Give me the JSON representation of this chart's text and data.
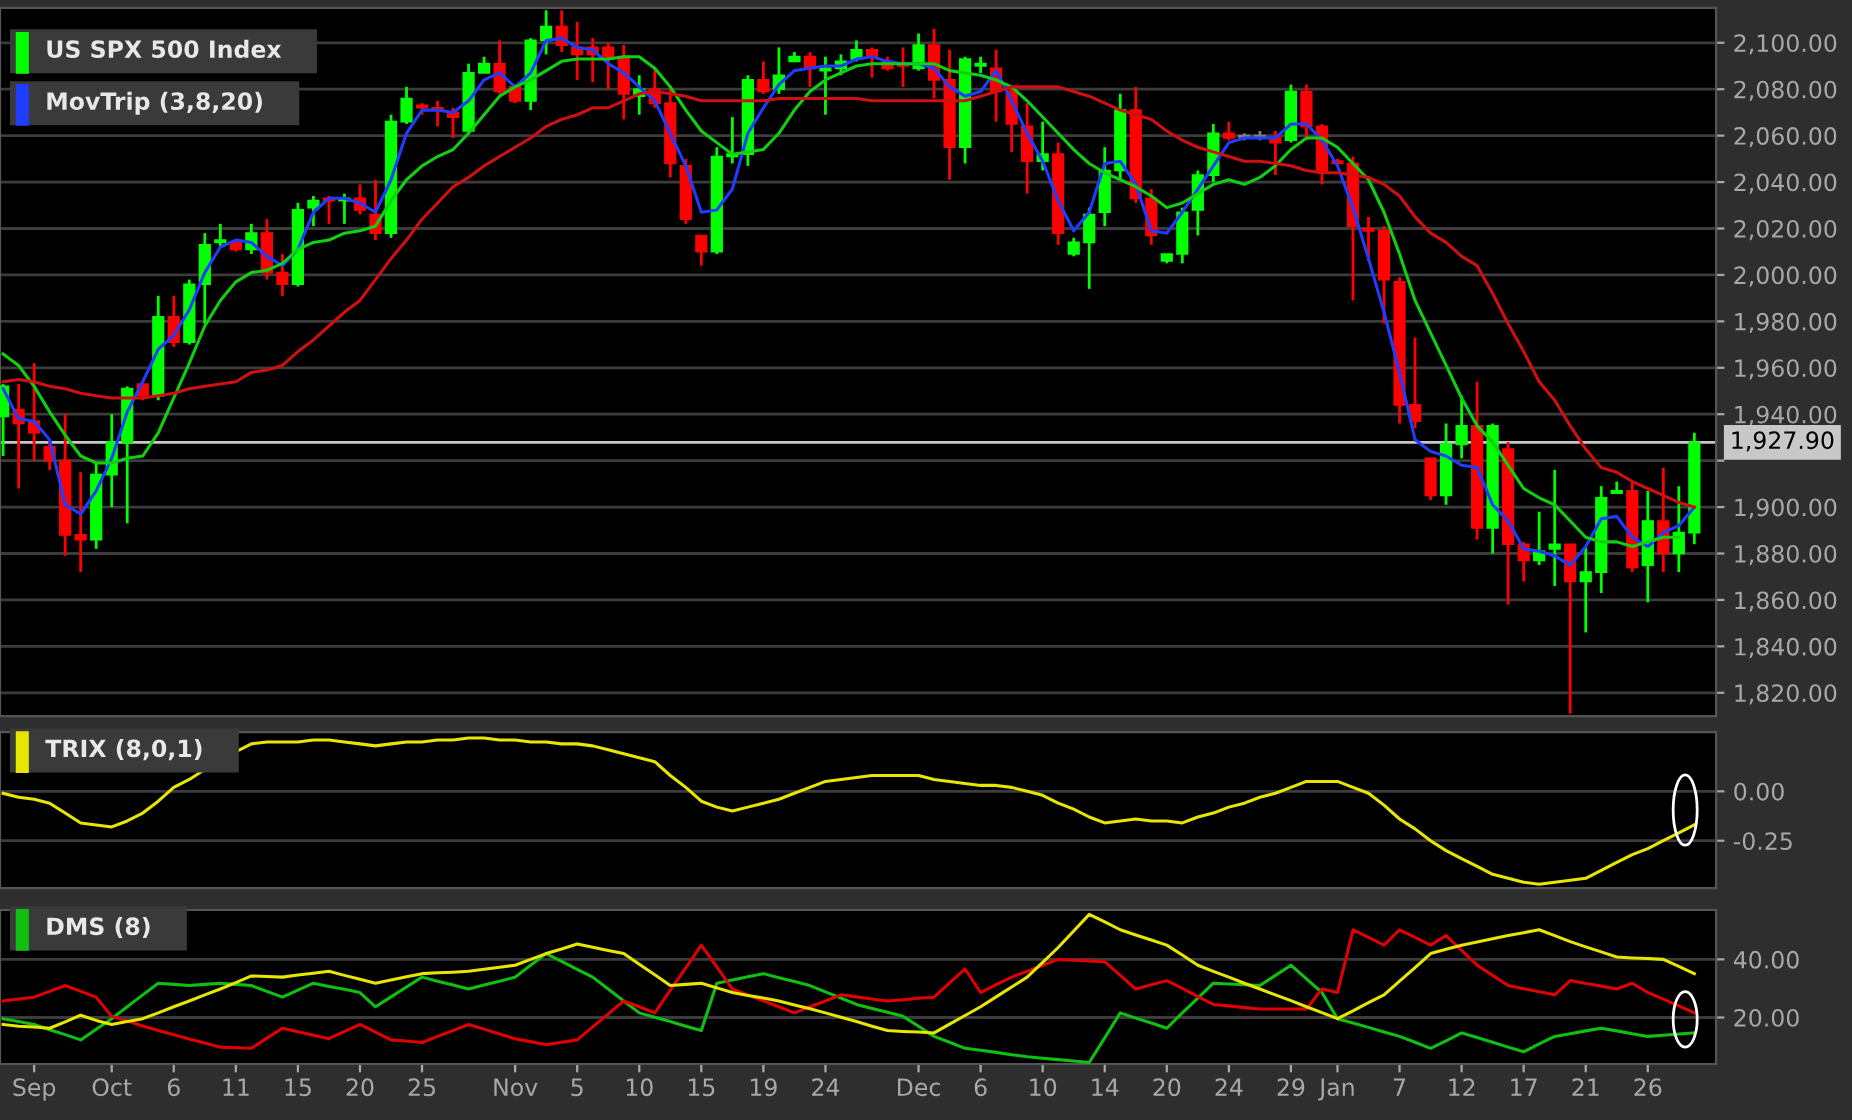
{
  "chart_data": [
    {
      "type": "candlestick",
      "legend": "top left",
      "grid": "y",
      "tick_labels": "y",
      "categories": [
        null,
        null,
        null,
        null,
        null,
        null,
        null,
        null,
        null,
        null,
        null,
        null,
        null,
        null,
        null,
        null,
        null,
        null,
        null,
        null,
        null,
        null,
        null,
        null,
        null,
        null,
        null,
        null,
        null,
        null,
        null,
        null,
        null,
        null,
        null,
        null,
        null,
        null,
        null,
        null,
        null,
        null,
        null,
        null,
        null,
        null,
        null,
        null,
        null,
        null,
        null,
        null,
        null,
        null,
        null,
        null,
        null,
        null,
        null,
        null,
        null,
        null,
        null,
        null,
        null,
        null,
        null,
        null,
        null,
        null,
        null,
        null,
        null,
        null,
        null,
        null,
        null,
        null,
        null,
        null,
        null,
        null,
        null,
        null,
        null,
        null,
        null,
        null,
        null,
        null,
        null,
        null,
        null,
        null,
        null,
        null,
        null,
        null,
        null,
        null,
        null,
        null,
        null,
        null,
        null,
        null,
        null,
        null,
        null,
        null
      ],
      "ylim": [
        1810,
        2115
      ],
      "yticks": [
        {
          "value": 1820,
          "label": "1,820.00"
        },
        {
          "value": 1840,
          "label": "1,840.00"
        },
        {
          "value": 1860,
          "label": "1,860.00"
        },
        {
          "value": 1880,
          "label": "1,880.00"
        },
        {
          "value": 1900,
          "label": "1,900.00"
        },
        {
          "value": 1920,
          "label": null
        },
        {
          "value": 1940,
          "label": "1,940.00"
        },
        {
          "value": 1960,
          "label": "1,960.00"
        },
        {
          "value": 1980,
          "label": "1,980.00"
        },
        {
          "value": 2000,
          "label": "2,000.00"
        },
        {
          "value": 2020,
          "label": "2,020.00"
        },
        {
          "value": 2040,
          "label": "2,040.00"
        },
        {
          "value": 2060,
          "label": "2,060.00"
        },
        {
          "value": 2080,
          "label": "2,080.00"
        },
        {
          "value": 2100,
          "label": "2,100.00"
        }
      ],
      "ref_lines": [
        {
          "axis": "y",
          "value": 1927.9,
          "label": "1,927.90",
          "color": "#c8c8c8"
        }
      ],
      "series": [
        {
          "name": "US SPX 500 Index",
          "type": "candlestick",
          "color": "#00ff00",
          "ohlc": [
            [
              1939,
              1953,
              1922,
              1952
            ],
            [
              1942,
              1953,
              1908,
              1936
            ],
            [
              1937,
              1962,
              1920,
              1932
            ],
            [
              1926,
              1929,
              1916,
              1920
            ],
            [
              1920,
              1940,
              1879,
              1888
            ],
            [
              1888,
              1915,
              1872,
              1886
            ],
            [
              1886,
              1919,
              1882,
              1914
            ],
            [
              1914,
              1940,
              1900,
              1928
            ],
            [
              1928,
              1952,
              1893,
              1951
            ],
            [
              1953,
              1953,
              1946,
              1948
            ],
            [
              1948,
              1991,
              1946,
              1982
            ],
            [
              1982,
              1991,
              1969,
              1971
            ],
            [
              1971,
              1998,
              1970,
              1996
            ],
            [
              1996,
              2018,
              1979,
              2013
            ],
            [
              2014,
              2022,
              2012,
              2015
            ],
            [
              2014,
              2015,
              2010,
              2011
            ],
            [
              2011,
              2022,
              2009,
              2018
            ],
            [
              2018,
              2024,
              1998,
              2001
            ],
            [
              2001,
              2009,
              1991,
              1996
            ],
            [
              1996,
              2031,
              1995,
              2028
            ],
            [
              2029,
              2034,
              2021,
              2032
            ],
            [
              2033,
              2034,
              2022,
              2032
            ],
            [
              2032,
              2035,
              2022,
              2033
            ],
            [
              2033,
              2039,
              2026,
              2028
            ],
            [
              2026,
              2041,
              2015,
              2018
            ],
            [
              2018,
              2069,
              2016,
              2066
            ],
            [
              2066,
              2081,
              2065,
              2076
            ],
            [
              2073,
              2074,
              2069,
              2072
            ],
            [
              2072,
              2075,
              2064,
              2071
            ],
            [
              2070,
              2072,
              2059,
              2068
            ],
            [
              2062,
              2091,
              2061,
              2087
            ],
            [
              2087,
              2094,
              2087,
              2091
            ],
            [
              2091,
              2101,
              2078,
              2079
            ],
            [
              2081,
              2082,
              2074,
              2075
            ],
            [
              2075,
              2102,
              2071,
              2101
            ],
            [
              2101,
              2114,
              2095,
              2107
            ],
            [
              2107,
              2114,
              2096,
              2099
            ],
            [
              2098,
              2109,
              2084,
              2095
            ],
            [
              2098,
              2102,
              2083,
              2095
            ],
            [
              2098,
              2100,
              2080,
              2094
            ],
            [
              2094,
              2099,
              2067,
              2078
            ],
            [
              2077,
              2086,
              2069,
              2080
            ],
            [
              2080,
              2089,
              2072,
              2074
            ],
            [
              2074,
              2081,
              2042,
              2048
            ],
            [
              2047,
              2050,
              2022,
              2024
            ],
            [
              2017,
              2017,
              2004,
              2010
            ],
            [
              2010,
              2055,
              2009,
              2051
            ],
            [
              2051,
              2068,
              2048,
              2052
            ],
            [
              2052,
              2086,
              2047,
              2084
            ],
            [
              2084,
              2092,
              2078,
              2079
            ],
            [
              2080,
              2098,
              2078,
              2086
            ],
            [
              2092,
              2096,
              2092,
              2094
            ],
            [
              2094,
              2096,
              2081,
              2089
            ],
            [
              2088,
              2094,
              2069,
              2089
            ],
            [
              2089,
              2095,
              2086,
              2092
            ],
            [
              2093,
              2101,
              2092,
              2097
            ],
            [
              2097,
              2098,
              2085,
              2094
            ],
            [
              2092,
              2094,
              2088,
              2089
            ],
            [
              2091,
              2098,
              2081,
              2090
            ],
            [
              2089,
              2104,
              2088,
              2099
            ],
            [
              2099,
              2106,
              2076,
              2084
            ],
            [
              2084,
              2097,
              2041,
              2055
            ],
            [
              2055,
              2094,
              2048,
              2093
            ],
            [
              2090,
              2094,
              2087,
              2091
            ],
            [
              2089,
              2097,
              2066,
              2079
            ],
            [
              2079,
              2081,
              2053,
              2065
            ],
            [
              2064,
              2074,
              2035,
              2049
            ],
            [
              2049,
              2066,
              2045,
              2052
            ],
            [
              2052,
              2057,
              2013,
              2018
            ],
            [
              2009,
              2016,
              2008,
              2014
            ],
            [
              2014,
              2029,
              1994,
              2026
            ],
            [
              2027,
              2055,
              2021,
              2045
            ],
            [
              2045,
              2078,
              2041,
              2071
            ],
            [
              2071,
              2081,
              2031,
              2033
            ],
            [
              2033,
              2037,
              2013,
              2017
            ],
            [
              2006,
              2009,
              2005,
              2009
            ],
            [
              2009,
              2029,
              2005,
              2027
            ],
            [
              2028,
              2045,
              2017,
              2043
            ],
            [
              2043,
              2065,
              2040,
              2061
            ],
            [
              2061,
              2066,
              2058,
              2059
            ],
            [
              2060,
              2061,
              2058,
              2059
            ],
            [
              2059,
              2062,
              2058,
              2060
            ],
            [
              2059,
              2062,
              2043,
              2057
            ],
            [
              2058,
              2082,
              2057,
              2079
            ],
            [
              2079,
              2082,
              2058,
              2064
            ],
            [
              2064,
              2065,
              2039,
              2044
            ],
            [
              2049,
              2050,
              2047,
              2048
            ],
            [
              2048,
              2051,
              1989,
              2021
            ],
            [
              2020,
              2025,
              2006,
              2019
            ],
            [
              2019,
              2021,
              1979,
              1998
            ],
            [
              1997,
              1999,
              1936,
              1944
            ],
            [
              1944,
              1973,
              1934,
              1937
            ],
            [
              1921,
              1921,
              1903,
              1905
            ],
            [
              1905,
              1936,
              1901,
              1927
            ],
            [
              1927,
              1948,
              1921,
              1935
            ],
            [
              1935,
              1954,
              1886,
              1891
            ],
            [
              1891,
              1936,
              1880,
              1935
            ],
            [
              1925,
              1928,
              1858,
              1884
            ],
            [
              1884,
              1885,
              1868,
              1877
            ],
            [
              1877,
              1898,
              1875,
              1881
            ],
            [
              1882,
              1916,
              1866,
              1884
            ],
            [
              1884,
              1884,
              1811,
              1868
            ],
            [
              1868,
              1883,
              1846,
              1872
            ],
            [
              1872,
              1909,
              1863,
              1904
            ],
            [
              1906,
              1911,
              1906,
              1907
            ],
            [
              1907,
              1911,
              1872,
              1874
            ],
            [
              1875,
              1907,
              1859,
              1894
            ],
            [
              1894,
              1917,
              1872,
              1880
            ],
            [
              1880,
              1909,
              1872,
              1889
            ],
            [
              1889,
              1932,
              1884,
              1927.9
            ]
          ],
          "colors": [
            "#00ff00",
            "#ff0000",
            "#ff0000",
            "#ff0000",
            "#ff0000",
            "#ff0000",
            "#00ff00",
            "#00ff00",
            "#00ff00",
            "#ff0000",
            "#00ff00",
            "#ff0000",
            "#00ff00",
            "#00ff00",
            "#00ff00",
            "#ff0000",
            "#00ff00",
            "#ff0000",
            "#ff0000",
            "#00ff00",
            "#00ff00",
            "#ff0000",
            "#00ff00",
            "#ff0000",
            "#ff0000",
            "#00ff00",
            "#00ff00",
            "#ff0000",
            "#ff0000",
            "#ff0000",
            "#00ff00",
            "#00ff00",
            "#ff0000",
            "#ff0000",
            "#00ff00",
            "#00ff00",
            "#ff0000",
            "#ff0000",
            "#ff0000",
            "#ff0000",
            "#ff0000",
            "#00ff00",
            "#ff0000",
            "#ff0000",
            "#ff0000",
            "#ff0000",
            "#00ff00",
            "#00ff00",
            "#00ff00",
            "#ff0000",
            "#00ff00",
            "#00ff00",
            "#ff0000",
            "#00ff00",
            "#00ff00",
            "#00ff00",
            "#ff0000",
            "#ff0000",
            "#ff0000",
            "#00ff00",
            "#ff0000",
            "#ff0000",
            "#00ff00",
            "#00ff00",
            "#ff0000",
            "#ff0000",
            "#ff0000",
            "#00ff00",
            "#ff0000",
            "#00ff00",
            "#00ff00",
            "#00ff00",
            "#00ff00",
            "#ff0000",
            "#ff0000",
            "#00ff00",
            "#00ff00",
            "#00ff00",
            "#00ff00",
            "#ff0000",
            "#808080",
            "#808080",
            "#ff0000",
            "#00ff00",
            "#ff0000",
            "#ff0000",
            "#ff0000",
            "#ff0000",
            "#ff0000",
            "#ff0000",
            "#ff0000",
            "#ff0000",
            "#ff0000",
            "#00ff00",
            "#00ff00",
            "#ff0000",
            "#00ff00",
            "#ff0000",
            "#ff0000",
            "#00ff00",
            "#00ff00",
            "#ff0000",
            "#00ff00",
            "#00ff00",
            "#00ff00",
            "#ff0000",
            "#00ff00",
            "#ff0000",
            "#00ff00",
            "#00ff00"
          ]
        },
        {
          "name": "MovTrip (3,8,20)",
          "type": "line",
          "color": "#1f3dff",
          "values": [
            1951,
            1938,
            1937,
            1929,
            1901,
            1897,
            1907,
            1921,
            1941,
            1954,
            1968,
            1974,
            1985,
            2001,
            2012,
            2015,
            2014,
            2008,
            2004,
            2011,
            2027,
            2033,
            2033,
            2031,
            2027,
            2041,
            2061,
            2071,
            2071,
            2070,
            2075,
            2084,
            2087,
            2081,
            2087,
            2101,
            2102,
            2098,
            2097,
            2091,
            2087,
            2081,
            2075,
            2061,
            2047,
            2027,
            2028,
            2037,
            2061,
            2072,
            2082,
            2088,
            2089,
            2090,
            2090,
            2093,
            2094,
            2092,
            2091,
            2091,
            2089,
            2081,
            2077,
            2079,
            2088,
            2075,
            2061,
            2049,
            2032,
            2019,
            2027,
            2048,
            2049,
            2039,
            2019,
            2018,
            2027,
            2037,
            2047,
            2057,
            2059,
            2059,
            2059,
            2065,
            2065,
            2058,
            2047,
            2029,
            2007,
            1984,
            1958,
            1929,
            1924,
            1922,
            1918,
            1917,
            1901,
            1894,
            1882,
            1881,
            1879,
            1875,
            1883,
            1895,
            1896,
            1887,
            1883,
            1889,
            1892,
            1900
          ]
        },
        {
          "type": "line",
          "color": "#10d010",
          "values": [
            1966,
            1961,
            1952,
            1941,
            1931,
            1922,
            1919,
            1919,
            1921,
            1922,
            1932,
            1947,
            1962,
            1978,
            1989,
            1997,
            2001,
            2002,
            2005,
            2011,
            2014,
            2015,
            2018,
            2019,
            2021,
            2032,
            2041,
            2047,
            2051,
            2054,
            2061,
            2069,
            2077,
            2081,
            2084,
            2088,
            2092,
            2093,
            2093,
            2093,
            2094,
            2094,
            2089,
            2081,
            2071,
            2062,
            2057,
            2052,
            2053,
            2054,
            2061,
            2071,
            2079,
            2084,
            2087,
            2090,
            2091,
            2091,
            2091,
            2091,
            2091,
            2088,
            2087,
            2086,
            2084,
            2081,
            2075,
            2068,
            2061,
            2054,
            2048,
            2044,
            2041,
            2038,
            2034,
            2029,
            2031,
            2035,
            2039,
            2041,
            2039,
            2042,
            2047,
            2054,
            2059,
            2059,
            2055,
            2048,
            2041,
            2027,
            2009,
            1989,
            1975,
            1961,
            1947,
            1935,
            1928,
            1918,
            1908,
            1904,
            1901,
            1894,
            1887,
            1885,
            1885,
            1883,
            1885,
            1887,
            1887,
            null
          ]
        },
        {
          "type": "line",
          "color": "#d01010",
          "values": [
            1954,
            1955,
            1954,
            1952,
            1951,
            1949,
            1948,
            1947,
            1947,
            1947,
            1948,
            1949,
            1951,
            1952,
            1953,
            1954,
            1958,
            1959,
            1961,
            1967,
            1972,
            1978,
            1984,
            1989,
            1998,
            2007,
            2015,
            2024,
            2031,
            2038,
            2042,
            2047,
            2051,
            2055,
            2059,
            2064,
            2067,
            2069,
            2072,
            2072,
            2075,
            2078,
            2079,
            2078,
            2077,
            2075,
            2075,
            2075,
            2075,
            2075,
            2076,
            2076,
            2076,
            2076,
            2076,
            2076,
            2075,
            2075,
            2075,
            2075,
            2075,
            2075,
            2075,
            2077,
            2079,
            2081,
            2081,
            2081,
            2081,
            2079,
            2077,
            2074,
            2071,
            2069,
            2067,
            2062,
            2058,
            2055,
            2053,
            2051,
            2049,
            2049,
            2048,
            2047,
            2045,
            2044,
            2044,
            2043,
            2042,
            2039,
            2034,
            2025,
            2018,
            2014,
            2008,
            2004,
            1992,
            1979,
            1967,
            1954,
            1946,
            1935,
            1925,
            1917,
            1915,
            1911,
            1908,
            1905,
            1902,
            1900
          ]
        }
      ]
    },
    {
      "type": "line",
      "legend": "top left",
      "grid": "y",
      "tick_labels": "y",
      "categories": [
        null,
        null,
        null,
        null,
        null,
        null,
        null,
        null,
        null,
        null,
        null,
        null,
        null,
        null,
        null,
        null,
        null,
        null,
        null,
        null,
        null,
        null,
        null,
        null,
        null,
        null,
        null,
        null,
        null,
        null,
        null,
        null,
        null,
        null,
        null,
        null,
        null,
        null,
        null,
        null,
        null,
        null,
        null,
        null,
        null,
        null,
        null,
        null,
        null,
        null,
        null,
        null,
        null,
        null,
        null,
        null,
        null,
        null,
        null,
        null,
        null,
        null,
        null,
        null,
        null,
        null,
        null,
        null,
        null,
        null,
        null,
        null,
        null,
        null,
        null,
        null,
        null,
        null,
        null,
        null,
        null,
        null,
        null,
        null,
        null,
        null,
        null,
        null,
        null,
        null,
        null,
        null,
        null,
        null,
        null,
        null,
        null,
        null,
        null,
        null,
        null,
        null,
        null,
        null,
        null,
        null,
        null,
        null,
        null,
        null
      ],
      "ylim": [
        -0.49,
        0.3
      ],
      "yticks": [
        {
          "value": -0.25,
          "label": "-0.25"
        },
        {
          "value": 0,
          "label": "0.00"
        }
      ],
      "series": [
        {
          "name": "TRIX (8,0,1)",
          "color": "#e6e600",
          "values": [
            -0.01,
            -0.03,
            -0.04,
            -0.06,
            -0.11,
            -0.16,
            -0.17,
            -0.18,
            -0.15,
            -0.11,
            -0.05,
            0.02,
            0.06,
            0.11,
            null,
            0.2,
            0.24,
            0.25,
            0.25,
            0.25,
            0.26,
            0.26,
            0.25,
            0.24,
            0.23,
            0.24,
            0.25,
            0.25,
            0.26,
            0.26,
            0.27,
            0.27,
            0.26,
            0.26,
            0.25,
            0.25,
            0.24,
            0.24,
            0.23,
            0.21,
            0.19,
            0.17,
            0.15,
            0.08,
            0.02,
            -0.05,
            -0.08,
            -0.1,
            -0.08,
            -0.06,
            -0.04,
            -0.01,
            0.02,
            0.05,
            0.06,
            0.07,
            0.08,
            0.08,
            0.08,
            0.08,
            0.06,
            0.05,
            0.04,
            0.03,
            0.03,
            0.02,
            0.0,
            -0.02,
            -0.06,
            -0.09,
            -0.13,
            -0.16,
            -0.15,
            -0.14,
            -0.15,
            -0.15,
            -0.16,
            -0.13,
            -0.11,
            -0.08,
            -0.06,
            -0.03,
            -0.01,
            0.02,
            0.05,
            0.05,
            0.05,
            0.02,
            -0.01,
            -0.07,
            -0.14,
            -0.19,
            -0.25,
            -0.3,
            -0.34,
            -0.38,
            -0.42,
            -0.44,
            -0.46,
            -0.47,
            -0.46,
            -0.45,
            -0.44,
            -0.4,
            -0.36,
            -0.32,
            -0.29,
            -0.25,
            -0.21,
            -0.17
          ]
        }
      ]
    },
    {
      "type": "line",
      "legend": "top left",
      "grid": "y",
      "categories": [
        null,
        null,
        "Sep",
        null,
        null,
        null,
        null,
        "Oct",
        null,
        null,
        null,
        "6",
        null,
        null,
        null,
        "11",
        null,
        null,
        null,
        "15",
        null,
        null,
        null,
        "20",
        null,
        null,
        null,
        "25",
        null,
        null,
        null,
        null,
        null,
        "Nov",
        null,
        null,
        null,
        "5",
        null,
        null,
        null,
        "10",
        null,
        null,
        null,
        "15",
        null,
        null,
        null,
        "19",
        null,
        null,
        null,
        "24",
        null,
        null,
        null,
        null,
        null,
        "Dec",
        null,
        null,
        null,
        "6",
        null,
        null,
        null,
        "10",
        null,
        null,
        null,
        "14",
        null,
        null,
        null,
        "20",
        null,
        null,
        null,
        "24",
        null,
        null,
        null,
        "29",
        null,
        null,
        "Jan",
        null,
        null,
        null,
        "7",
        null,
        null,
        null,
        "12",
        null,
        null,
        null,
        "17",
        null,
        null,
        null,
        "21",
        null,
        null,
        null,
        "26",
        null,
        null,
        null
      ],
      "ylim": [
        4,
        57
      ],
      "yticks": [
        {
          "value": 20,
          "label": "20.00"
        },
        {
          "value": 40,
          "label": "40.00"
        }
      ],
      "series": [
        {
          "name": "DMS (8)",
          "color": "#10c010",
          "values": [
            19.6,
            18.6,
            17.6,
            15.8,
            14.1,
            12.3,
            16,
            19.6,
            23.7,
            27.8,
            31.8,
            31.4,
            31,
            31.4,
            31.8,
            31.4,
            31,
            29,
            27,
            29.4,
            31.8,
            30.7,
            29.7,
            28.6,
            23.7,
            27.1,
            30.5,
            33.9,
            32.5,
            31.2,
            29.8,
            31.2,
            32.5,
            33.9,
            38,
            42,
            39.3,
            36.6,
            33.9,
            29.8,
            25.7,
            21.6,
            20.1,
            18.6,
            17,
            15.5,
            31.8,
            32.9,
            34,
            35.1,
            33.7,
            32.4,
            31,
            28.8,
            26.7,
            24.5,
            23.1,
            21.8,
            20.4,
            17,
            13.5,
            11.5,
            9.4,
            8.7,
            8,
            7.2,
            6.5,
            6,
            5.5,
            5,
            4.5,
            13,
            21.6,
            19.8,
            18.1,
            16.3,
            21.6,
            26.7,
            31.8,
            31.5,
            31.3,
            31,
            34.5,
            38,
            33.3,
            28.6,
            19.6,
            18.1,
            16.6,
            15,
            13.5,
            11.5,
            9.4,
            12,
            14.7,
            13.1,
            11.5,
            9.8,
            8.2,
            10.9,
            13.5,
            14.4,
            15.4,
            16.3,
            15.4,
            14.4,
            13.5,
            13.9,
            14.3,
            14.7
          ]
        },
        {
          "color": "#e00000",
          "values": [
            25.7,
            26.4,
            27,
            29,
            31,
            29,
            27,
            20.4,
            18.8,
            17.1,
            15.5,
            14.1,
            12.6,
            11.2,
            9.8,
            9.6,
            9.4,
            12.9,
            16.3,
            15.1,
            13.9,
            12.7,
            15.2,
            17.6,
            15,
            12.3,
            11.9,
            11.4,
            13.5,
            15.5,
            17.6,
            16,
            14.3,
            12.7,
            11.7,
            10.6,
            11.5,
            12.3,
            16.8,
            21.2,
            25.7,
            23.7,
            21.6,
            29.4,
            37.1,
            44.9,
            37.4,
            29.8,
            27.8,
            25.7,
            23.7,
            21.6,
            23.7,
            25.7,
            27.8,
            27.1,
            26.4,
            25.7,
            26.1,
            26.6,
            27,
            31.9,
            36.7,
            28.6,
            31.3,
            33.9,
            35.9,
            38,
            40,
            39.7,
            39.5,
            39.2,
            34.5,
            29.8,
            31.3,
            32.7,
            30,
            27.2,
            24.5,
            24,
            23.4,
            22.9,
            22.9,
            22.9,
            22.9,
            29.8,
            28.6,
            50.2,
            47.6,
            44.9,
            50.2,
            47.6,
            44.9,
            48.2,
            43.1,
            38,
            34.5,
            31,
            29.9,
            28.9,
            27.8,
            32.7,
            31.7,
            30.8,
            29.8,
            31.8,
            28.6,
            26.3,
            24,
            21.6
          ]
        },
        {
          "color": "#e6e600",
          "values": [
            17.6,
            17,
            16.7,
            16.3,
            18.5,
            20.8,
            19,
            17.6,
            18.6,
            19.6,
            21.6,
            23.7,
            25.7,
            27.8,
            29.8,
            32,
            34.3,
            34.1,
            33.9,
            34.6,
            35.2,
            35.9,
            34.5,
            33.2,
            31.8,
            32.9,
            34,
            35.1,
            35.4,
            35.6,
            35.9,
            36.6,
            37.3,
            38,
            40,
            42,
            43.6,
            45.3,
            44.2,
            43.1,
            42,
            38.3,
            34.7,
            31,
            31.4,
            31.8,
            30.2,
            28.6,
            27.6,
            26.7,
            25.7,
            24.3,
            23,
            21.6,
            20.1,
            18.6,
            17,
            15.5,
            15.2,
            15,
            14.7,
            17.7,
            20.7,
            23.7,
            27.1,
            30.5,
            33.9,
            39,
            44.1,
            49.8,
            55.5,
            52.9,
            50.2,
            48.4,
            46.7,
            44.9,
            41.5,
            38,
            35.9,
            33.9,
            31.8,
            29.8,
            27.8,
            25.8,
            23.7,
            21.7,
            19.6,
            22.3,
            25.1,
            27.8,
            32.5,
            37.2,
            42,
            43.5,
            44.9,
            46,
            47.1,
            48.2,
            49.2,
            50.2,
            48.2,
            46.1,
            44.3,
            42.6,
            40.8,
            40.5,
            40.3,
            40,
            37.6,
            35.1
          ]
        }
      ]
    }
  ]
}
